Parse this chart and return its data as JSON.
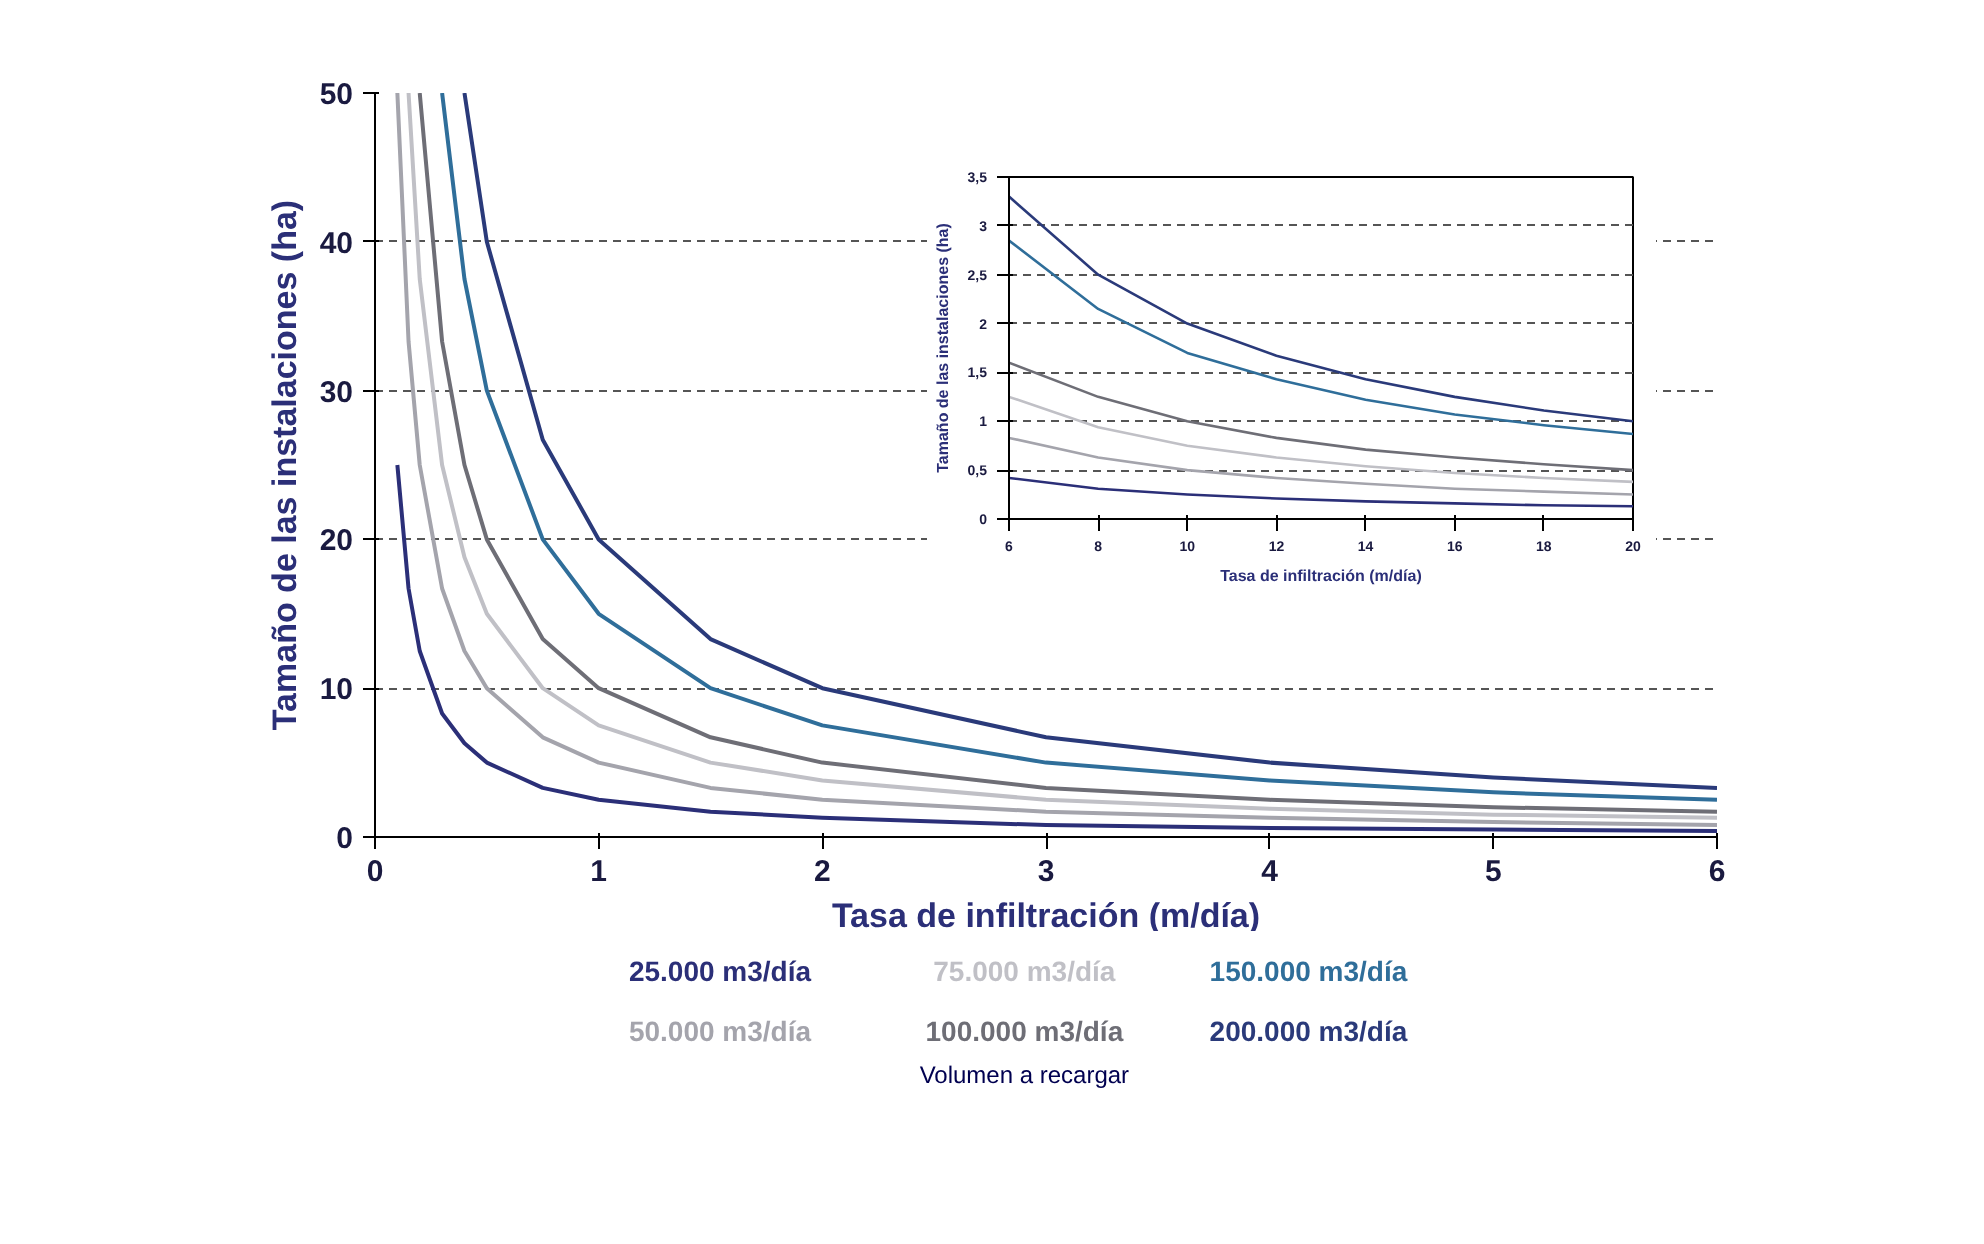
{
  "chart_data": [
    {
      "type": "line",
      "xlabel": "Tasa de infiltración (m/día)",
      "ylabel": "Tamaño de las instalaciones (ha)",
      "legend_title": "Volumen a recargar",
      "xlim": [
        0,
        6
      ],
      "ylim": [
        0,
        50
      ],
      "xticks": [
        0,
        1,
        2,
        3,
        4,
        5,
        6
      ],
      "yticks": [
        0,
        10,
        20,
        30,
        40,
        50
      ],
      "grid": "y",
      "legend": "bottom",
      "marker": "none",
      "series": [
        {
          "name": "25.000 m3/día",
          "color": "#2b2f78",
          "x": [
            0.1,
            0.15,
            0.2,
            0.3,
            0.4,
            0.5,
            0.75,
            1,
            1.5,
            2,
            3,
            4,
            5,
            6
          ],
          "values": [
            25,
            16.7,
            12.5,
            8.3,
            6.3,
            5,
            3.3,
            2.5,
            1.7,
            1.3,
            0.8,
            0.6,
            0.5,
            0.4
          ]
        },
        {
          "name": "50.000 m3/día",
          "color": "#a4a4ac",
          "x": [
            0.1,
            0.15,
            0.2,
            0.3,
            0.4,
            0.5,
            0.75,
            1,
            1.5,
            2,
            3,
            4,
            5,
            6
          ],
          "values": [
            50,
            33.3,
            25,
            16.7,
            12.5,
            10,
            6.7,
            5,
            3.3,
            2.5,
            1.7,
            1.3,
            1,
            0.8
          ]
        },
        {
          "name": "75.000 m3/día",
          "color": "#c0c0c6",
          "x": [
            0.15,
            0.2,
            0.3,
            0.4,
            0.5,
            0.75,
            1,
            1.5,
            2,
            3,
            4,
            5,
            6
          ],
          "values": [
            50,
            37.5,
            25,
            18.8,
            15,
            10,
            7.5,
            5,
            3.8,
            2.5,
            1.9,
            1.5,
            1.3
          ]
        },
        {
          "name": "100.000 m3/día",
          "color": "#6e6e76",
          "x": [
            0.2,
            0.3,
            0.4,
            0.5,
            0.75,
            1,
            1.5,
            2,
            3,
            4,
            5,
            6
          ],
          "values": [
            50,
            33.3,
            25,
            20,
            13.3,
            10,
            6.7,
            5,
            3.3,
            2.5,
            2,
            1.7
          ]
        },
        {
          "name": "150.000 m3/día",
          "color": "#2f6e9a",
          "x": [
            0.3,
            0.4,
            0.5,
            0.75,
            1,
            1.5,
            2,
            3,
            4,
            5,
            6
          ],
          "values": [
            50,
            37.5,
            30,
            20,
            15,
            10,
            7.5,
            5,
            3.8,
            3,
            2.5
          ]
        },
        {
          "name": "200.000 m3/día",
          "color": "#2a3a7a",
          "x": [
            0.4,
            0.5,
            0.75,
            1,
            1.5,
            2,
            3,
            4,
            5,
            6
          ],
          "values": [
            50,
            40,
            26.7,
            20,
            13.3,
            10,
            6.7,
            5,
            4,
            3.3
          ]
        }
      ]
    },
    {
      "type": "line",
      "xlabel": "Tasa de infiltración (m/día)",
      "ylabel": "Tamaño de las instalaciones (ha)",
      "xlim": [
        6,
        20
      ],
      "ylim": [
        0,
        3.5
      ],
      "xticks": [
        6,
        8,
        10,
        12,
        14,
        16,
        18,
        20
      ],
      "yticks": [
        0,
        {
          "value": 0.5,
          "label": "0,5"
        },
        1,
        {
          "value": 1.5,
          "label": "1,5"
        },
        2,
        {
          "value": 2.5,
          "label": "2,5"
        },
        3,
        {
          "value": 3.5,
          "label": "3,5"
        }
      ],
      "grid": "y",
      "marker": "none",
      "x": [
        6,
        8,
        10,
        12,
        14,
        16,
        18,
        20
      ],
      "series": [
        {
          "color": "#2b2f78",
          "values": [
            0.42,
            0.31,
            0.25,
            0.21,
            0.18,
            0.16,
            0.14,
            0.13
          ]
        },
        {
          "color": "#a4a4ac",
          "values": [
            0.83,
            0.63,
            0.5,
            0.42,
            0.36,
            0.31,
            0.28,
            0.25
          ]
        },
        {
          "color": "#c0c0c6",
          "values": [
            1.25,
            0.94,
            0.75,
            0.63,
            0.54,
            0.47,
            0.42,
            0.38
          ]
        },
        {
          "color": "#6e6e76",
          "values": [
            1.6,
            1.25,
            1.0,
            0.83,
            0.71,
            0.63,
            0.56,
            0.5
          ]
        },
        {
          "color": "#2f6e9a",
          "values": [
            2.85,
            2.15,
            1.7,
            1.43,
            1.22,
            1.07,
            0.96,
            0.87
          ]
        },
        {
          "color": "#2a3a7a",
          "values": [
            3.3,
            2.5,
            2.0,
            1.67,
            1.43,
            1.25,
            1.11,
            1.0
          ]
        }
      ]
    }
  ]
}
